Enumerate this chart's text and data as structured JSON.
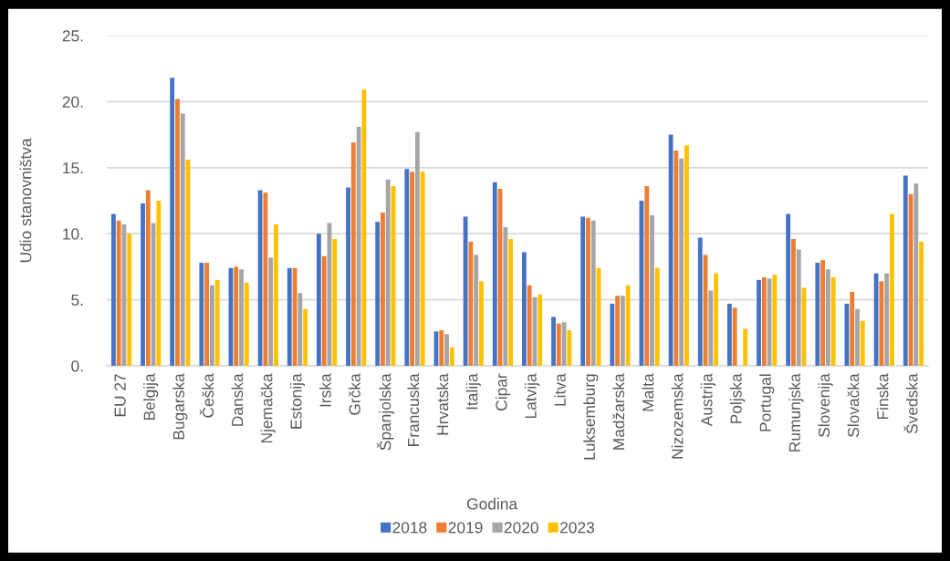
{
  "chart_data": {
    "type": "bar",
    "xlabel": "Godina",
    "ylabel": "Udio stanovništva",
    "categories": [
      "EU 27",
      "Belgija",
      "Bugarska",
      "Češka",
      "Danska",
      "Njemačka",
      "Estonija",
      "Irska",
      "Grčka",
      "Španjolska",
      "Francuska",
      "Hrvatska",
      "Italija",
      "Cipar",
      "Latvija",
      "Litva",
      "Luksemburg",
      "Madžarska",
      "Malta",
      "Nizozemska",
      "Austrija",
      "Poljska",
      "Portugal",
      "Rumunjska",
      "Slovenija",
      "Slovačka",
      "Finska",
      "Švedska"
    ],
    "series": [
      {
        "name": "2018",
        "color": "#4472c4",
        "values": [
          11.5,
          12.3,
          21.8,
          7.8,
          7.4,
          13.3,
          7.4,
          10.0,
          13.5,
          10.9,
          14.9,
          2.6,
          11.3,
          13.9,
          8.6,
          3.7,
          11.3,
          4.7,
          12.5,
          17.5,
          9.7,
          4.7,
          6.5,
          11.5,
          7.8,
          4.7,
          7.0,
          14.4
        ]
      },
      {
        "name": "2019",
        "color": "#ed7d31",
        "values": [
          11.0,
          13.3,
          20.2,
          7.8,
          7.5,
          13.1,
          7.4,
          8.3,
          16.9,
          11.6,
          14.7,
          2.7,
          9.4,
          13.4,
          6.1,
          3.2,
          11.2,
          5.3,
          13.6,
          16.3,
          8.4,
          4.4,
          6.7,
          9.6,
          8.0,
          5.6,
          6.4,
          13.0
        ]
      },
      {
        "name": "2020",
        "color": "#a5a5a5",
        "values": [
          10.7,
          10.8,
          19.1,
          6.1,
          7.3,
          8.2,
          5.5,
          10.8,
          18.1,
          14.1,
          17.7,
          2.4,
          8.4,
          10.5,
          5.2,
          3.3,
          11.0,
          5.3,
          11.4,
          15.7,
          5.7,
          null,
          6.6,
          8.8,
          7.3,
          4.3,
          7.0,
          13.8
        ]
      },
      {
        "name": "2023",
        "color": "#ffc000",
        "values": [
          10.0,
          12.5,
          15.6,
          6.5,
          6.3,
          10.7,
          4.3,
          9.6,
          20.9,
          13.6,
          14.7,
          1.4,
          6.4,
          9.6,
          5.4,
          2.7,
          7.4,
          6.1,
          7.4,
          16.7,
          7.0,
          2.8,
          6.9,
          5.9,
          6.7,
          3.4,
          11.5,
          9.4
        ]
      }
    ],
    "ylim": [
      0,
      25
    ],
    "yticks": [
      {
        "value": 0,
        "label": "0."
      },
      {
        "value": 5,
        "label": "5."
      },
      {
        "value": 10,
        "label": "10."
      },
      {
        "value": 15,
        "label": "15."
      },
      {
        "value": 20,
        "label": "20."
      },
      {
        "value": 25,
        "label": "25."
      }
    ],
    "grid": "y",
    "legend": "bottom"
  }
}
